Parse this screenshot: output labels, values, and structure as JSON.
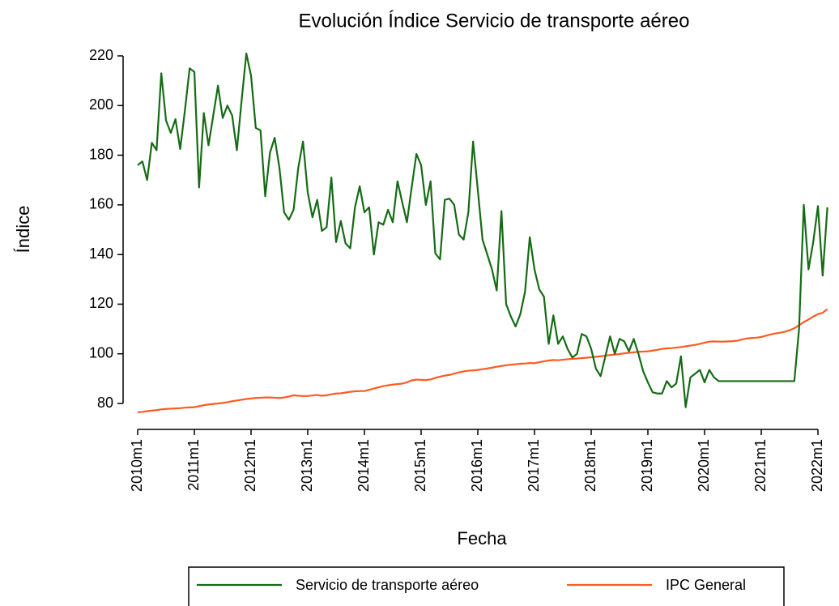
{
  "chart_data": {
    "type": "line",
    "title": "Evolución Índice Servicio de transporte aéreo",
    "x_label": "Fecha",
    "y_label": "Índice",
    "categories": [
      "2010m1",
      null,
      null,
      null,
      null,
      null,
      null,
      null,
      null,
      null,
      null,
      null,
      "2011m1",
      null,
      null,
      null,
      null,
      null,
      null,
      null,
      null,
      null,
      null,
      null,
      "2012m1",
      null,
      null,
      null,
      null,
      null,
      null,
      null,
      null,
      null,
      null,
      null,
      "2013m1",
      null,
      null,
      null,
      null,
      null,
      null,
      null,
      null,
      null,
      null,
      null,
      "2014m1",
      null,
      null,
      null,
      null,
      null,
      null,
      null,
      null,
      null,
      null,
      null,
      "2015m1",
      null,
      null,
      null,
      null,
      null,
      null,
      null,
      null,
      null,
      null,
      null,
      "2016m1",
      null,
      null,
      null,
      null,
      null,
      null,
      null,
      null,
      null,
      null,
      null,
      "2017m1",
      null,
      null,
      null,
      null,
      null,
      null,
      null,
      null,
      null,
      null,
      null,
      "2018m1",
      null,
      null,
      null,
      null,
      null,
      null,
      null,
      null,
      null,
      null,
      null,
      "2019m1",
      null,
      null,
      null,
      null,
      null,
      null,
      null,
      null,
      null,
      null,
      null,
      "2020m1",
      null,
      null,
      null,
      null,
      null,
      null,
      null,
      null,
      null,
      null,
      null,
      "2021m1",
      null,
      null,
      null,
      null,
      null,
      null,
      null,
      null,
      null,
      null,
      null,
      "2022m1",
      null,
      null
    ],
    "series": [
      {
        "name": "Servicio de transporte aéreo",
        "color": "#156b15",
        "values": [
          176,
          177.5,
          170,
          185,
          182,
          213,
          194,
          189,
          194.5,
          182.5,
          198,
          215,
          213.5,
          167,
          197,
          184,
          196,
          208,
          195,
          200,
          196,
          182,
          202,
          221,
          212,
          191,
          190,
          163.5,
          181,
          187,
          175,
          157,
          154,
          158,
          175,
          185.5,
          165,
          155,
          162,
          149.5,
          151,
          171,
          145,
          153.5,
          144.5,
          142.5,
          159,
          167.5,
          157,
          159,
          140,
          153,
          152,
          158,
          153,
          169.5,
          161,
          153,
          167,
          180.5,
          176,
          160,
          169.5,
          140.5,
          138,
          162,
          162.5,
          160,
          148,
          146,
          157,
          185.5,
          166,
          146,
          140,
          134,
          125.5,
          157.5,
          120,
          115,
          111,
          116,
          125,
          147,
          134,
          126,
          123,
          104,
          115.5,
          104,
          107,
          102,
          98.5,
          100,
          108,
          107,
          102,
          94,
          91,
          99,
          107,
          100,
          106,
          105,
          101,
          106,
          100,
          93,
          88.5,
          84.5,
          84,
          84,
          89,
          86.5,
          88,
          99,
          78.5,
          90.5,
          92,
          93.5,
          88.5,
          93.5,
          90.5,
          89,
          89,
          89,
          89,
          89,
          89,
          89,
          89,
          89,
          89,
          89,
          89,
          89,
          89,
          89,
          89,
          89,
          110,
          160,
          134,
          145,
          159.5,
          131.5,
          159
        ]
      },
      {
        "name": "IPC General",
        "color": "#ff5a1f",
        "values": [
          76.5,
          76.6,
          76.9,
          77.1,
          77.3,
          77.6,
          77.8,
          77.9,
          78.0,
          78.1,
          78.3,
          78.4,
          78.5,
          78.9,
          79.3,
          79.6,
          79.8,
          80.0,
          80.2,
          80.5,
          80.9,
          81.2,
          81.5,
          81.8,
          82.0,
          82.2,
          82.3,
          82.4,
          82.4,
          82.3,
          82.2,
          82.4,
          82.8,
          83.3,
          83.1,
          83.0,
          83.0,
          83.2,
          83.4,
          83.1,
          83.3,
          83.7,
          84.0,
          84.1,
          84.4,
          84.7,
          84.9,
          85.0,
          85.0,
          85.5,
          86.0,
          86.5,
          87.0,
          87.3,
          87.6,
          87.8,
          88.0,
          88.5,
          89.3,
          89.6,
          89.5,
          89.4,
          89.7,
          90.3,
          90.8,
          91.2,
          91.5,
          92.0,
          92.5,
          92.9,
          93.2,
          93.3,
          93.5,
          93.8,
          94.1,
          94.4,
          94.8,
          95.1,
          95.4,
          95.6,
          95.8,
          96.0,
          96.1,
          96.3,
          96.2,
          96.6,
          97.0,
          97.3,
          97.5,
          97.4,
          97.6,
          97.8,
          98.0,
          98.1,
          98.3,
          98.4,
          98.6,
          98.8,
          99.0,
          99.3,
          99.5,
          99.7,
          99.9,
          100.2,
          100.4,
          100.6,
          100.8,
          100.9,
          101.0,
          101.3,
          101.6,
          102.0,
          102.2,
          102.3,
          102.5,
          102.7,
          103.0,
          103.3,
          103.6,
          104.0,
          104.5,
          104.9,
          105.0,
          104.9,
          104.9,
          105.0,
          105.1,
          105.3,
          105.8,
          106.2,
          106.4,
          106.5,
          106.8,
          107.3,
          107.8,
          108.2,
          108.5,
          108.9,
          109.5,
          110.3,
          111.5,
          112.8,
          113.8,
          115.0,
          116.0,
          116.5,
          118.0
        ]
      }
    ],
    "ylim": [
      80,
      220
    ],
    "yticks": [
      80,
      100,
      120,
      140,
      160,
      180,
      200,
      220
    ],
    "legend": "bottom"
  }
}
